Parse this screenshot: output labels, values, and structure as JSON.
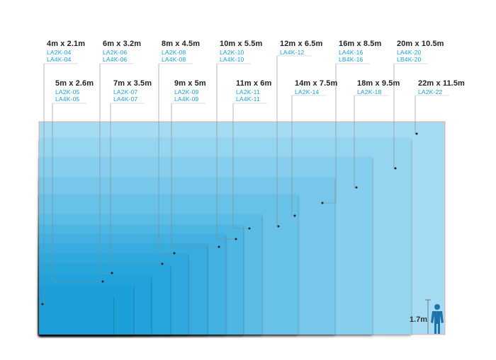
{
  "screens": [
    {
      "size": "4m x 2.1m",
      "codes": [
        "LA2K-04",
        "LA4K-04"
      ]
    },
    {
      "size": "5m x 2.6m",
      "codes": [
        "LA2K-05",
        "LA4K-05"
      ]
    },
    {
      "size": "6m x 3.2m",
      "codes": [
        "LA2K-06",
        "LA4K-06"
      ]
    },
    {
      "size": "7m x 3.5m",
      "codes": [
        "LA2K-07",
        "LA4K-07"
      ]
    },
    {
      "size": "8m x 4.5m",
      "codes": [
        "LA2K-08",
        "LA4K-08"
      ]
    },
    {
      "size": "9m x 5m",
      "codes": [
        "LA2K-09",
        "LA4K-09"
      ]
    },
    {
      "size": "10m x 5.5m",
      "codes": [
        "LA2K-10",
        "LA4K-10"
      ]
    },
    {
      "size": "11m x 6m",
      "codes": [
        "LA2K-11",
        "LA4K-11"
      ]
    },
    {
      "size": "12m x 6.5m",
      "codes": [
        "LA4K-12"
      ]
    },
    {
      "size": "14m x 7.5m",
      "codes": [
        "LA2K-14"
      ]
    },
    {
      "size": "16m x 8.5m",
      "codes": [
        "LA4K-16",
        "LB4K-16"
      ]
    },
    {
      "size": "18m x 9.5m",
      "codes": [
        "LA2K-18"
      ]
    },
    {
      "size": "20m x 10.5m",
      "codes": [
        "LA4K-20",
        "LB4K-20"
      ]
    },
    {
      "size": "22m x 11.5m",
      "codes": [
        "LA2K-22"
      ]
    }
  ],
  "human_reference": {
    "height_label": "1.7m"
  },
  "colors": {
    "darkest": "#1a9fd9",
    "lightest": "#a6dcf3",
    "outer_border": "#f0a6a0",
    "leader_line": "#888888",
    "code_text": "#1aa0dc",
    "human": "#1e74a8"
  }
}
